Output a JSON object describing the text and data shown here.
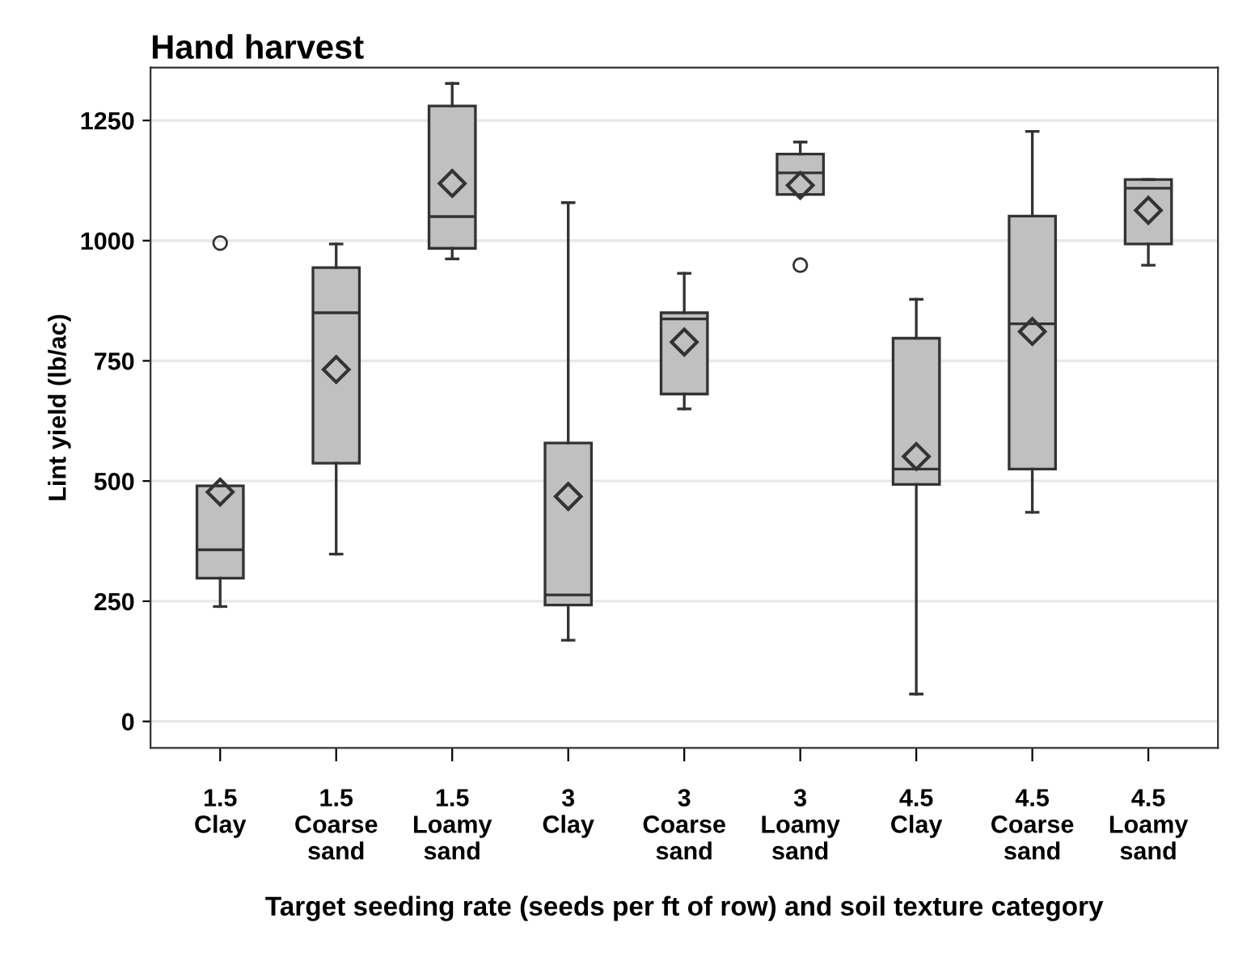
{
  "chart_data": {
    "type": "box",
    "title": "Hand harvest",
    "xlabel": "Target seeding rate (seeds per ft of row) and soil texture category",
    "ylabel": "Lint yield (lb/ac)",
    "categories": [
      "1.5\nClay",
      "1.5\nCoarse\nsand",
      "1.5\nLoamy\nsand",
      "3\nClay",
      "3\nCoarse\nsand",
      "3\nLoamy\nsand",
      "4.5\nClay",
      "4.5\nCoarse\nsand",
      "4.5\nLoamy\nsand"
    ],
    "boxes": [
      {
        "low": 239,
        "q1": 298,
        "median": 357,
        "q3": 490,
        "high": 490,
        "mean": 477,
        "outliers": [
          995
        ]
      },
      {
        "low": 348,
        "q1": 537,
        "median": 850,
        "q3": 944,
        "high": 993,
        "mean": 732
      },
      {
        "low": 962,
        "q1": 984,
        "median": 1050,
        "q3": 1280,
        "high": 1327,
        "mean": 1119
      },
      {
        "low": 169,
        "q1": 242,
        "median": 263,
        "q3": 579,
        "high": 1079,
        "mean": 468
      },
      {
        "low": 650,
        "q1": 681,
        "median": 837,
        "q3": 850,
        "high": 932,
        "mean": 789
      },
      {
        "low": 1096,
        "q1": 1096,
        "median": 1141,
        "q3": 1180,
        "high": 1205,
        "mean": 1115,
        "outliers": [
          949
        ]
      },
      {
        "low": 57,
        "q1": 493,
        "median": 525,
        "q3": 797,
        "high": 878,
        "mean": 551
      },
      {
        "low": 435,
        "q1": 525,
        "median": 827,
        "q3": 1051,
        "high": 1227,
        "mean": 811
      },
      {
        "low": 949,
        "q1": 993,
        "median": 1109,
        "q3": 1127,
        "high": 1127,
        "mean": 1063
      }
    ],
    "color": "#c0c0c0",
    "ylim": [
      -55,
      1360
    ],
    "yticks": [
      0,
      250,
      500,
      750,
      1000,
      1250
    ],
    "grid": "y"
  }
}
